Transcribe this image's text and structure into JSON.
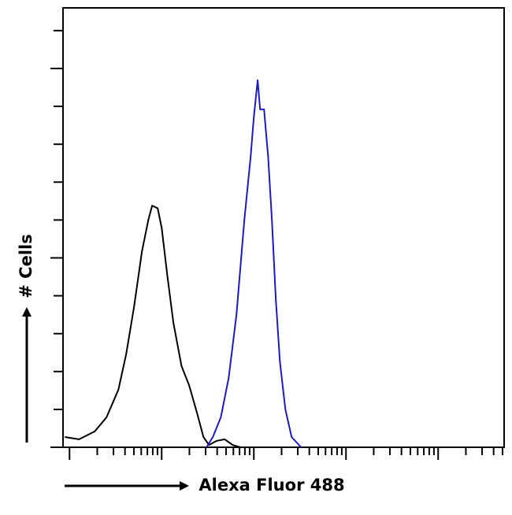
{
  "chart_data": {
    "type": "line",
    "x_label": "Alexa Fluor 488",
    "y_label": "# Cells",
    "x_log": true,
    "xlim": [
      0.85,
      52000
    ],
    "ylim": [
      0,
      11.6
    ],
    "xticks": [
      1,
      2,
      3,
      4,
      5,
      6,
      7,
      8,
      9,
      10,
      20,
      30,
      40,
      50,
      60,
      70,
      80,
      90,
      100,
      200,
      300,
      400,
      500,
      600,
      700,
      800,
      900,
      1000,
      2000,
      3000,
      4000,
      5000,
      6000,
      7000,
      8000,
      9000,
      10000,
      20000,
      30000,
      40000,
      50000
    ],
    "yticks": [
      0,
      1,
      2,
      3,
      4,
      5,
      6,
      7,
      8,
      9,
      10,
      11
    ],
    "series": [
      {
        "color": "#000000",
        "x": [
          0.89,
          1.27,
          1.88,
          2.52,
          3.39,
          4.12,
          5.02,
          6.11,
          7.16,
          7.89,
          9.06,
          10.0,
          11.5,
          13.4,
          16.4,
          19.9,
          24.2,
          28.4,
          32.6,
          39.6,
          48.3,
          58.8,
          71.6
        ],
        "values": [
          0.27,
          0.21,
          0.42,
          0.79,
          1.52,
          2.46,
          3.71,
          5.17,
          6.0,
          6.38,
          6.31,
          5.79,
          4.54,
          3.29,
          2.15,
          1.63,
          0.9,
          0.27,
          0.06,
          0.17,
          0.21,
          0.06,
          0
        ]
      },
      {
        "color": "#1a1acc",
        "x": [
          30.7,
          35.9,
          43.8,
          53.3,
          64.8,
          78.9,
          92.4,
          100,
          110,
          117,
          129,
          143,
          157,
          173,
          192,
          220,
          257,
          326
        ],
        "values": [
          0,
          0.27,
          0.79,
          1.83,
          3.5,
          6.0,
          7.67,
          8.71,
          9.69,
          8.92,
          8.92,
          7.67,
          6.0,
          3.92,
          2.25,
          1.0,
          0.27,
          0
        ]
      }
    ]
  }
}
